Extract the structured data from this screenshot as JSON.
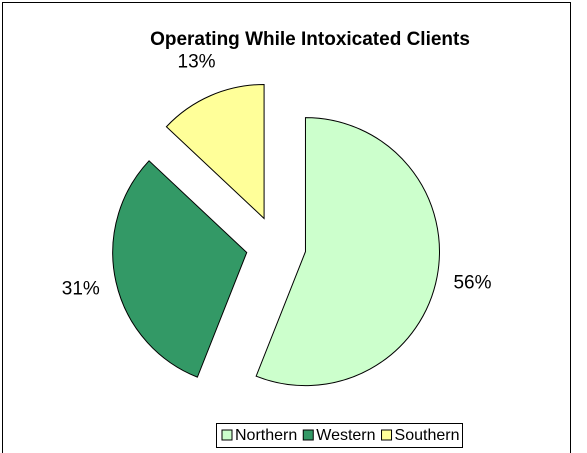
{
  "chart_data": {
    "type": "pie",
    "title": "Operating While Intoxicated Clients",
    "categories": [
      "Northern",
      "Western",
      "Southern"
    ],
    "values": [
      56,
      31,
      13
    ],
    "value_labels": [
      "56%",
      "31%",
      "13%"
    ],
    "colors": [
      "#ccffcc",
      "#339966",
      "#ffff99"
    ],
    "exploded": true,
    "legend": "bottom"
  }
}
